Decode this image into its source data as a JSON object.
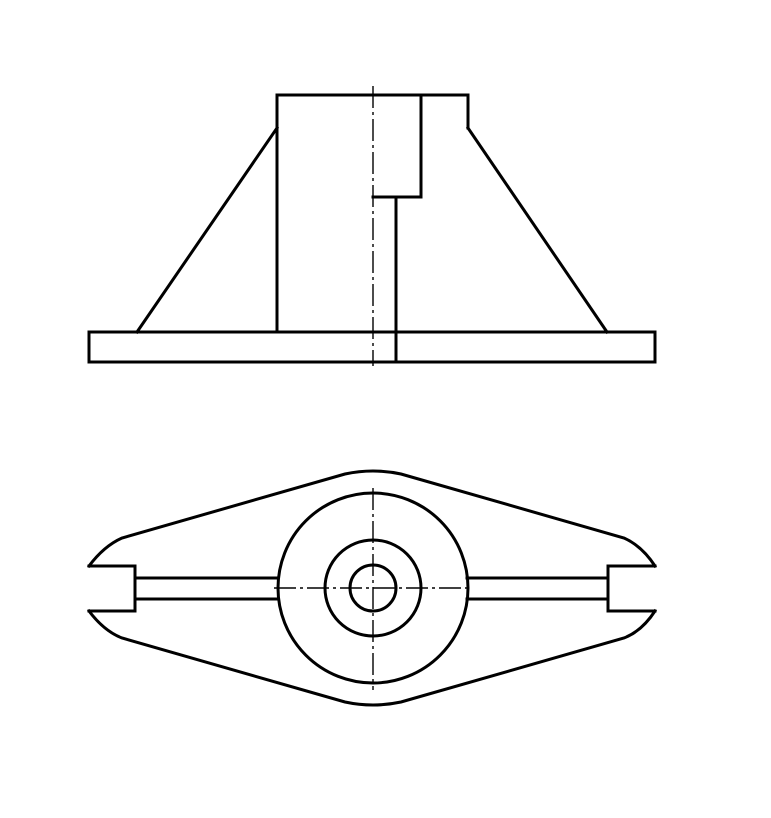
{
  "drawing": {
    "line_color": "#000000",
    "background": "#ffffff",
    "views": [
      {
        "name": "front-view",
        "section": "half-section"
      },
      {
        "name": "top-view"
      }
    ]
  }
}
